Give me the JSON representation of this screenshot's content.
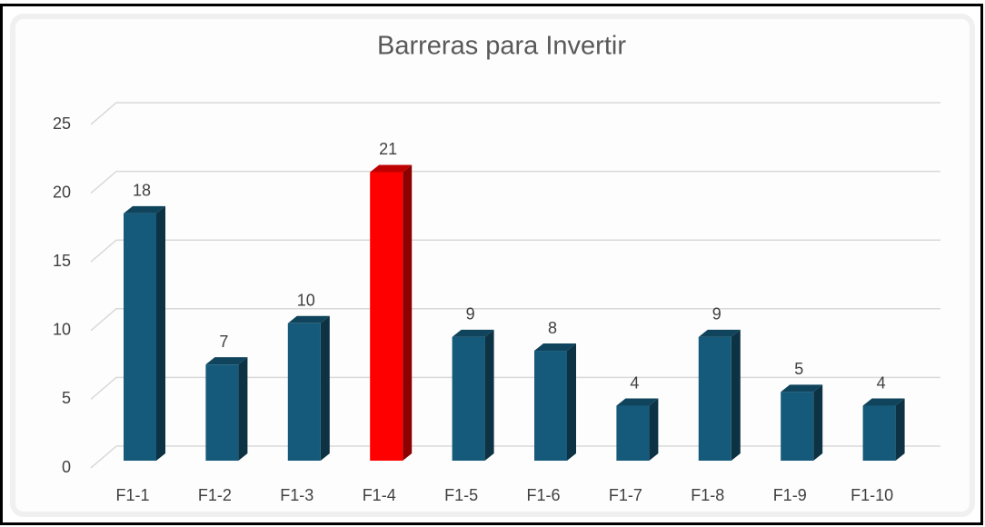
{
  "chart_data": {
    "type": "bar3d",
    "title": "Barreras para Invertir",
    "categories": [
      "F1-1",
      "F1-2",
      "F1-3",
      "F1-4",
      "F1-5",
      "F1-6",
      "F1-7",
      "F1-8",
      "F1-9",
      "F1-10"
    ],
    "values": [
      18,
      7,
      10,
      21,
      9,
      8,
      4,
      9,
      5,
      4
    ],
    "colors": [
      "#155a7a",
      "#155a7a",
      "#155a7a",
      "#ff0000",
      "#155a7a",
      "#155a7a",
      "#155a7a",
      "#155a7a",
      "#155a7a",
      "#155a7a"
    ],
    "ylim": [
      0,
      25
    ],
    "yticks": [
      0,
      5,
      10,
      15,
      20,
      25
    ],
    "grid": true
  }
}
